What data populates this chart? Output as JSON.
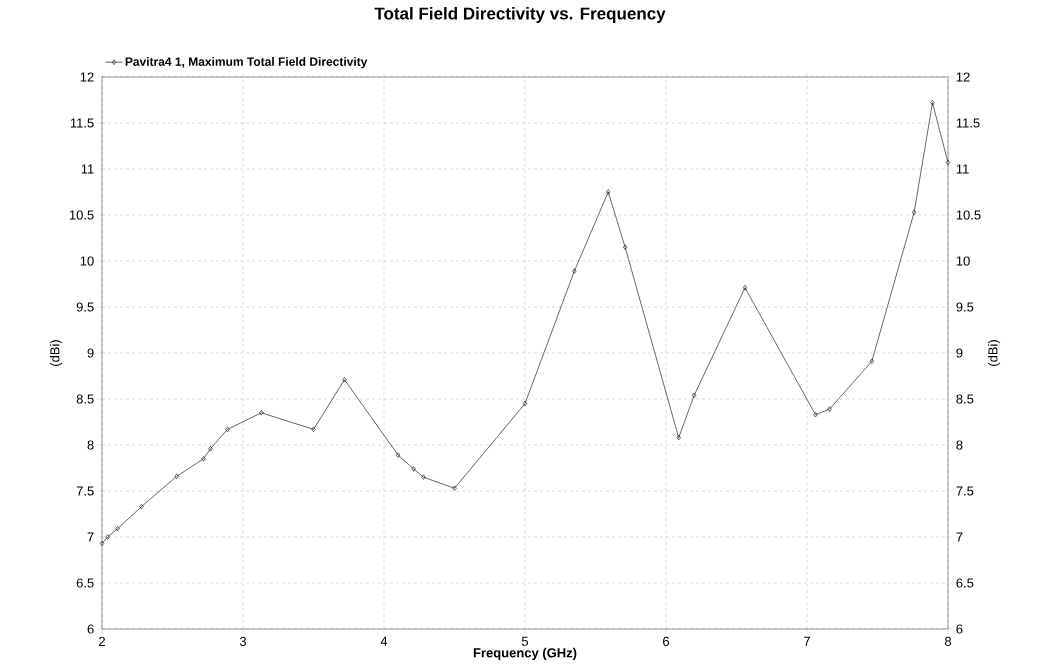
{
  "chart_data": {
    "type": "line",
    "title": "Total Field Directivity vs. Frequency",
    "xlabel": "Frequency (GHz)",
    "ylabel": "(dBi)",
    "y2label": "(dBi)",
    "x": [
      2.0,
      2.04,
      2.11,
      2.28,
      2.53,
      2.72,
      2.77,
      2.89,
      3.13,
      3.5,
      3.72,
      4.1,
      4.21,
      4.28,
      4.5,
      5.0,
      5.35,
      5.59,
      5.71,
      6.09,
      6.2,
      6.56,
      7.06,
      7.16,
      7.46,
      7.76,
      7.89,
      8.0
    ],
    "series": [
      {
        "name": "Pavitra4 1, Maximum Total Field Directivity",
        "color": "#000000",
        "values": [
          6.93,
          7.0,
          7.09,
          7.33,
          7.66,
          7.85,
          7.96,
          8.17,
          8.35,
          8.17,
          8.71,
          7.89,
          7.74,
          7.65,
          7.53,
          8.45,
          9.89,
          10.75,
          10.15,
          8.08,
          8.54,
          9.71,
          8.33,
          8.39,
          8.91,
          10.53,
          11.72,
          11.07
        ]
      }
    ],
    "xlim": [
      2,
      8
    ],
    "xticks": [
      2,
      3,
      4,
      5,
      6,
      7,
      8
    ],
    "ylim": [
      6,
      12
    ],
    "yticks": [
      6,
      6.5,
      7,
      7.5,
      8,
      8.5,
      9,
      9.5,
      10,
      10.5,
      11,
      11.5,
      12
    ],
    "y2lim": [
      6,
      12
    ],
    "y2ticks": [
      6,
      6.5,
      7,
      7.5,
      8,
      8.5,
      9,
      9.5,
      10,
      10.5,
      11,
      11.5,
      12
    ],
    "grid": true,
    "legend": "top left",
    "marker": "diamond",
    "line_style": "solid"
  }
}
